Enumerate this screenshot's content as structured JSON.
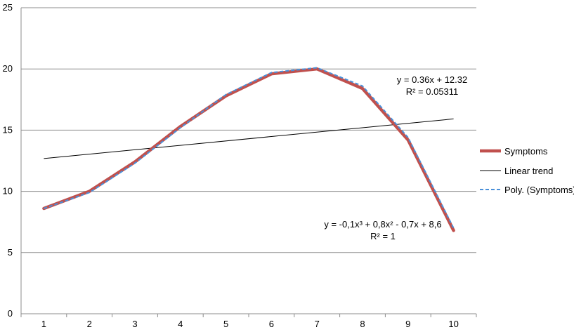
{
  "chart_data": {
    "type": "line",
    "x": [
      1,
      2,
      3,
      4,
      5,
      6,
      7,
      8,
      9,
      10
    ],
    "xlim": [
      0.5,
      10.5
    ],
    "ylim": [
      0,
      25
    ],
    "yticks": [
      "0",
      "5",
      "10",
      "15",
      "20",
      "25"
    ],
    "xticks": [
      "1",
      "2",
      "3",
      "4",
      "5",
      "6",
      "7",
      "8",
      "9",
      "10"
    ],
    "grid": "horizontal",
    "legend_position": "right",
    "series": [
      {
        "name": "Symptoms",
        "values": [
          8.6,
          10.0,
          12.4,
          15.3,
          17.8,
          19.6,
          20.0,
          18.4,
          14.2,
          6.8
        ],
        "color": "#c0504d",
        "style": "solid-thick"
      },
      {
        "name": "Linear trend",
        "values": [
          12.68,
          13.04,
          13.4,
          13.76,
          14.12,
          14.48,
          14.84,
          15.2,
          15.56,
          15.92
        ],
        "color": "#000000",
        "style": "solid-thin"
      },
      {
        "name": "Poly. (Symptoms)",
        "values": [
          8.6,
          9.9,
          12.3,
          15.2,
          17.9,
          19.7,
          20.1,
          18.6,
          14.4,
          7.0
        ],
        "color": "#4a90d9",
        "style": "dashed"
      }
    ],
    "annotations": [
      {
        "lines": [
          "y = 0.36x + 12.32",
          "R² = 0.05311"
        ],
        "series": "Linear trend"
      },
      {
        "lines": [
          "y = -0,1x³ + 0,8x² - 0,7x + 8,6",
          "R² = 1"
        ],
        "series": "Poly. (Symptoms)"
      }
    ]
  }
}
